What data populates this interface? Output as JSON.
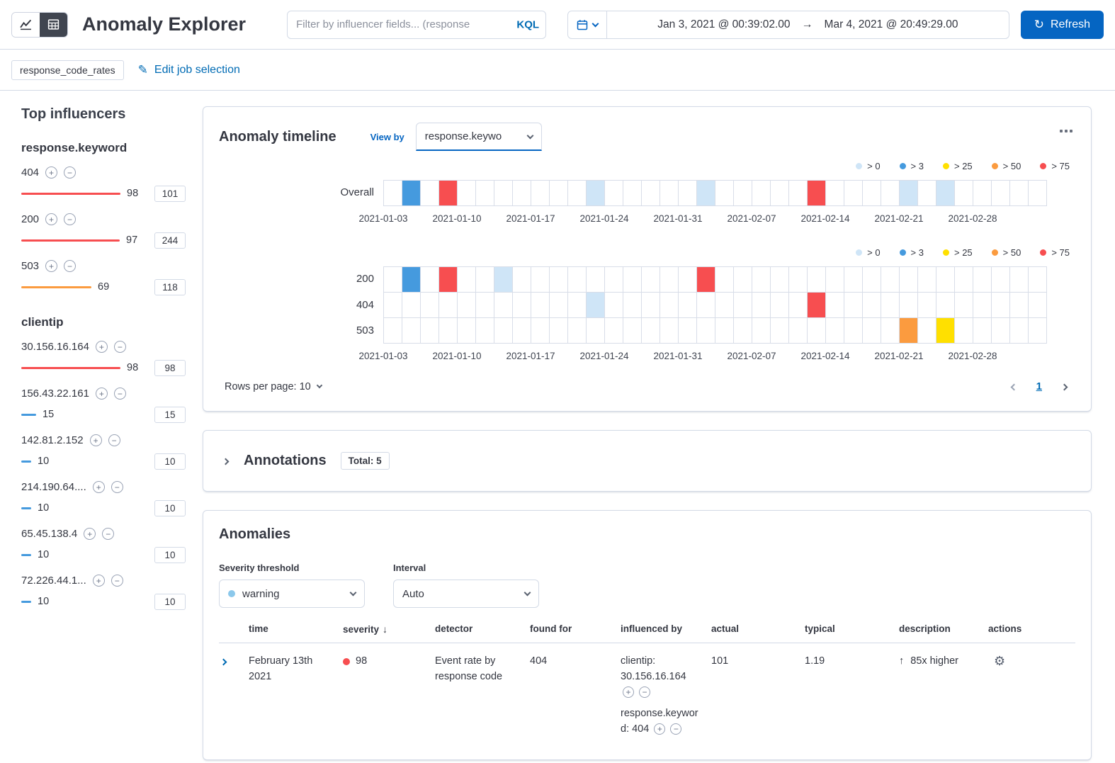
{
  "icons": {
    "refresh": "↻",
    "pencil": "✎",
    "gear": "⚙",
    "arrow_right": "→",
    "arrow_up": "↑",
    "sort_down": "↓",
    "plus": "+",
    "minus": "−"
  },
  "header": {
    "title": "Anomaly Explorer",
    "filter_placeholder": "Filter by influencer fields... (response",
    "kql_label": "KQL",
    "date_start": "Jan 3, 2021 @ 00:39:02.00",
    "date_end": "Mar 4, 2021 @ 20:49:29.00",
    "refresh_label": "Refresh"
  },
  "job_bar": {
    "job_badge": "response_code_rates",
    "edit_link": "Edit job selection"
  },
  "influencers": {
    "heading": "Top influencers",
    "max_value": 98,
    "groups": [
      {
        "field": "response.keyword",
        "items": [
          {
            "name": "404",
            "value": 98,
            "badge": "101",
            "color": "#f74e50"
          },
          {
            "name": "200",
            "value": 97,
            "badge": "244",
            "color": "#f74e50"
          },
          {
            "name": "503",
            "value": 69,
            "badge": "118",
            "color": "#fb9b3f"
          }
        ]
      },
      {
        "field": "clientip",
        "items": [
          {
            "name": "30.156.16.164",
            "value": 98,
            "badge": "98",
            "color": "#f74e50"
          },
          {
            "name": "156.43.22.161",
            "value": 15,
            "badge": "15",
            "color": "#459ade"
          },
          {
            "name": "142.81.2.152",
            "value": 10,
            "badge": "10",
            "color": "#459ade"
          },
          {
            "name": "214.190.64....",
            "value": 10,
            "badge": "10",
            "color": "#459ade"
          },
          {
            "name": "65.45.138.4",
            "value": 10,
            "badge": "10",
            "color": "#459ade"
          },
          {
            "name": "72.226.44.1...",
            "value": 10,
            "badge": "10",
            "color": "#459ade"
          }
        ]
      }
    ]
  },
  "timeline": {
    "title": "Anomaly timeline",
    "view_by_label": "View by",
    "view_by_value": "response.keywo",
    "cols": 36,
    "legend": [
      {
        "label": "> 0",
        "color": "#cfe5f7"
      },
      {
        "label": "> 3",
        "color": "#459ade"
      },
      {
        "label": "> 25",
        "color": "#ffe000"
      },
      {
        "label": "> 50",
        "color": "#fb9b3f"
      },
      {
        "label": "> 75",
        "color": "#f74e50"
      }
    ],
    "axis_labels": [
      "2021-01-03",
      "2021-01-10",
      "2021-01-17",
      "2021-01-24",
      "2021-01-31",
      "2021-02-07",
      "2021-02-14",
      "2021-02-21",
      "2021-02-28"
    ],
    "overall_lane": {
      "label": "Overall",
      "cells": [
        {
          "i": 1,
          "color": "#459ade"
        },
        {
          "i": 3,
          "color": "#f74e50"
        },
        {
          "i": 11,
          "color": "#cfe5f7"
        },
        {
          "i": 17,
          "color": "#cfe5f7"
        },
        {
          "i": 23,
          "color": "#f74e50"
        },
        {
          "i": 28,
          "color": "#cfe5f7"
        },
        {
          "i": 30,
          "color": "#cfe5f7"
        }
      ]
    },
    "view_by_lanes": [
      {
        "label": "200",
        "cells": [
          {
            "i": 1,
            "color": "#459ade"
          },
          {
            "i": 3,
            "color": "#f74e50"
          },
          {
            "i": 6,
            "color": "#cfe5f7"
          },
          {
            "i": 17,
            "color": "#f74e50"
          }
        ]
      },
      {
        "label": "404",
        "cells": [
          {
            "i": 11,
            "color": "#cfe5f7"
          },
          {
            "i": 23,
            "color": "#f74e50"
          }
        ]
      },
      {
        "label": "503",
        "cells": [
          {
            "i": 28,
            "color": "#fb9b3f"
          },
          {
            "i": 30,
            "color": "#ffe000"
          }
        ]
      }
    ],
    "rows_per_page_label": "Rows per page: 10",
    "page": "1"
  },
  "annotations": {
    "title": "Annotations",
    "total_badge": "Total: 5"
  },
  "anomalies": {
    "title": "Anomalies",
    "severity_label": "Severity threshold",
    "severity_value": "warning",
    "severity_dot_color": "#8bc8eb",
    "interval_label": "Interval",
    "interval_value": "Auto",
    "columns": {
      "time": "time",
      "severity": "severity",
      "detector": "detector",
      "found_for": "found for",
      "influenced_by": "influenced by",
      "actual": "actual",
      "typical": "typical",
      "description": "description",
      "actions": "actions"
    },
    "row": {
      "time": "February 13th 2021",
      "severity": "98",
      "severity_color": "#f74e50",
      "detector": "Event rate by response code",
      "found_for": "404",
      "influencer_1": "clientip: 30.156.16.164",
      "influencer_2": "response.keyword: 404",
      "actual": "101",
      "typical": "1.19",
      "description": "85x higher"
    }
  }
}
